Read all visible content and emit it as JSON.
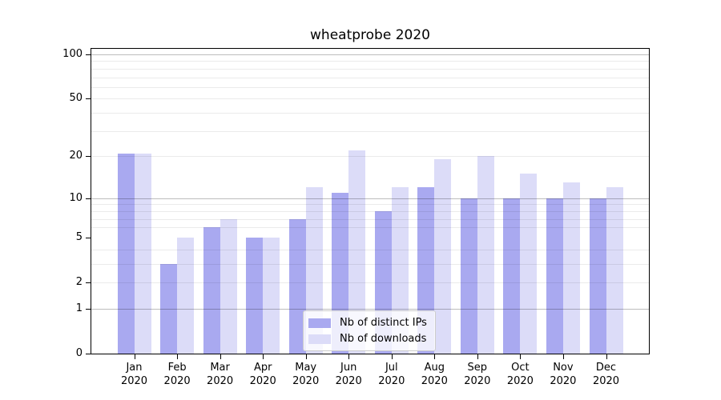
{
  "title": "wheatprobe 2020",
  "chart_data": {
    "type": "bar",
    "title": "wheatprobe 2020",
    "categories": [
      "Jan",
      "Feb",
      "Mar",
      "Apr",
      "May",
      "Jun",
      "Jul",
      "Aug",
      "Sep",
      "Oct",
      "Nov",
      "Dec"
    ],
    "year_label": "2020",
    "series": [
      {
        "name": "Nb of distinct IPs",
        "color": "#a9a9f0",
        "values": [
          21,
          3,
          6,
          5,
          7,
          11,
          8,
          12,
          10,
          10,
          10,
          10
        ]
      },
      {
        "name": "Nb of downloads",
        "color": "#dcdcf8",
        "values": [
          21,
          5,
          7,
          5,
          12,
          22,
          12,
          19,
          20,
          15,
          13,
          12
        ]
      }
    ],
    "xlabel": "",
    "ylabel": "",
    "scale": "log1p",
    "ylim": [
      0,
      110
    ],
    "y_tick_values": [
      0,
      1,
      2,
      5,
      10,
      20,
      50,
      100
    ],
    "y_tick_labels": [
      "0",
      "1",
      "2",
      "5",
      "10",
      "20",
      "50",
      "100"
    ],
    "grid_major_values": [
      1,
      10,
      100
    ],
    "grid_minor_values": [
      2,
      3,
      4,
      6,
      7,
      8,
      9,
      20,
      30,
      40,
      50,
      60,
      70,
      80,
      90
    ],
    "legend_position": "lower-center",
    "colors": {
      "bar_distinct_ips": "#a9a9f0",
      "bar_downloads": "#dcdcf8",
      "axis": "#000000",
      "major_grid": "#b8b8b8",
      "minor_grid": "#ebebeb",
      "background": "#ffffff"
    }
  }
}
